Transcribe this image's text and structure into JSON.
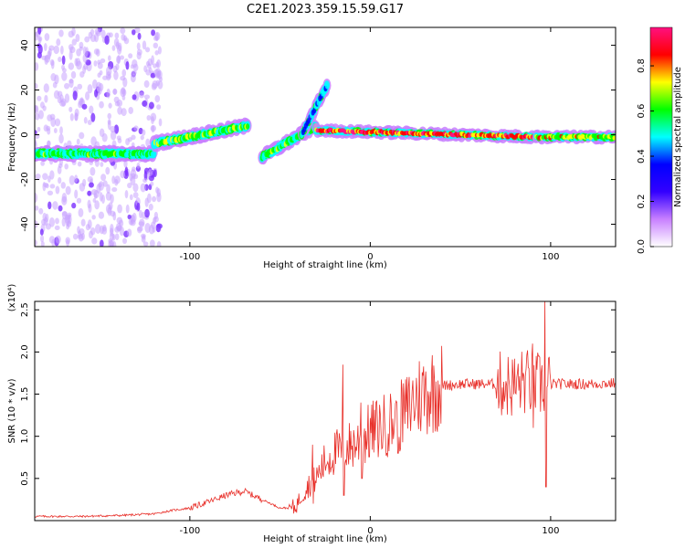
{
  "title": "C2E1.2023.359.15.59.G17",
  "chart_data": [
    {
      "type": "heatmap",
      "xlabel": "Height of straight line (km)",
      "ylabel": "Frequency (Hz)",
      "xlim": [
        -186,
        136
      ],
      "ylim": [
        -50,
        48
      ],
      "xticks": [
        -100,
        0,
        100
      ],
      "yticks": [
        -40,
        -20,
        0,
        20,
        40
      ],
      "colorbar": {
        "label": "Normalized spectral amplitude",
        "range": [
          0,
          0.97
        ],
        "ticks": [
          "0.0",
          "0.2",
          "0.4",
          "0.6",
          "0.8"
        ],
        "tick_values": [
          0,
          0.2,
          0.4,
          0.6,
          0.8
        ],
        "colors": [
          "#ffffff",
          "#c880ff",
          "#3300ff",
          "#0000ff",
          "#00ffff",
          "#00ff00",
          "#ffff00",
          "#ff0000",
          "#ff1080"
        ]
      },
      "features": [
        {
          "x": [
            -186,
            -120
          ],
          "freq": [
            -8.5,
            -8.5
          ],
          "strength": 0.45
        },
        {
          "x": [
            -120,
            -68
          ],
          "freq": [
            -4,
            4
          ],
          "strength": 0.5
        },
        {
          "x": [
            -60,
            -30
          ],
          "freq": [
            -10,
            4
          ],
          "strength": 0.5
        },
        {
          "x": [
            -38,
            -24
          ],
          "freq": [
            0,
            22
          ],
          "strength": 0.3
        },
        {
          "x": [
            -30,
            92
          ],
          "freq": [
            2,
            -1
          ],
          "strength": 0.75
        },
        {
          "x": [
            92,
            136
          ],
          "freq": [
            -1,
            -1
          ],
          "strength": 0.6
        }
      ]
    },
    {
      "type": "line",
      "xlabel": "Height of straight line (km)",
      "ylabel": "SNR (10 * v/v)",
      "yscale_label": "(x10⁴)",
      "xlim": [
        -186,
        136
      ],
      "ylim": [
        0,
        2.6
      ],
      "xticks": [
        -100,
        0,
        100
      ],
      "yticks": [
        0.5,
        1.0,
        1.5,
        2.0,
        2.5
      ],
      "ytick_labels": [
        "0.5",
        "1.0",
        "1.5",
        "2.0",
        "2.5"
      ],
      "color": "#e8302a",
      "x": [
        -186,
        -160,
        -140,
        -120,
        -110,
        -100,
        -90,
        -80,
        -70,
        -60,
        -50,
        -42,
        -35,
        -30,
        -25,
        -20,
        -15,
        -10,
        -5,
        0,
        5,
        10,
        15,
        20,
        25,
        30,
        40,
        50,
        60,
        70,
        80,
        85,
        90,
        95,
        100,
        110,
        120,
        136
      ],
      "values": [
        0.05,
        0.05,
        0.06,
        0.08,
        0.12,
        0.15,
        0.22,
        0.3,
        0.35,
        0.25,
        0.15,
        0.15,
        0.4,
        0.5,
        0.7,
        0.8,
        0.85,
        0.9,
        0.95,
        1.05,
        1.1,
        1.15,
        1.2,
        1.3,
        1.45,
        1.52,
        1.6,
        1.62,
        1.62,
        1.62,
        1.6,
        1.65,
        1.62,
        1.6,
        1.62,
        1.62,
        1.62,
        1.63
      ],
      "spikes": [
        {
          "x": -32,
          "peak": 0.9,
          "low": 0.2
        },
        {
          "x": -15,
          "peak": 1.85,
          "low": 0.3
        },
        {
          "x": -5,
          "peak": 1.4,
          "low": 0.5
        },
        {
          "x": 15,
          "peak": 1.4,
          "low": 0.8
        },
        {
          "x": 90,
          "peak": 2.1,
          "low": 1.1
        },
        {
          "x": 97,
          "peak": 2.62,
          "low": 0.4
        }
      ]
    }
  ]
}
